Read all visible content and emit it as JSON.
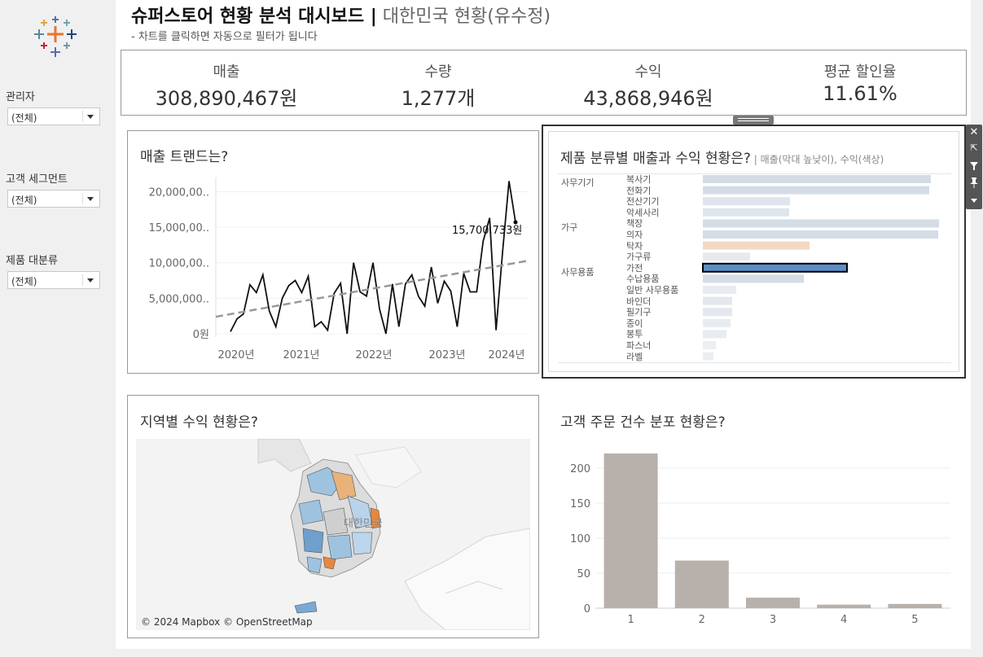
{
  "header": {
    "title_main": "슈퍼스토어 현황 분석 대시보드 |",
    "title_sub": " 대한민국 현황(유수정)",
    "subtitle": "- 차트를 클릭하면 자동으로 필터가 됩니다"
  },
  "sidebar": {
    "filters": [
      {
        "label": "관리자",
        "value": "(전체)"
      },
      {
        "label": "고객 세그먼트",
        "value": "(전체)"
      },
      {
        "label": "제품 대분류",
        "value": "(전체)"
      }
    ]
  },
  "kpis": [
    {
      "label": "매출",
      "value": "308,890,467원"
    },
    {
      "label": "수량",
      "value": "1,277개"
    },
    {
      "label": "수익",
      "value": "43,868,946원"
    },
    {
      "label": "평균 할인율",
      "value": "11.61%"
    }
  ],
  "trend": {
    "title": "매출 트랜드는?",
    "last_label": "15,700,733원"
  },
  "product": {
    "title": "제품 분류별 매출과 수익 현황은?",
    "note": " | 매출(막대 높낮이), 수익(색상)",
    "categories": [
      {
        "name": "사무기기",
        "items": [
          "복사기",
          "전화기",
          "전산기기",
          "악세사리"
        ]
      },
      {
        "name": "가구",
        "items": [
          "책장",
          "의자",
          "탁자",
          "가구류"
        ]
      },
      {
        "name": "사무용품",
        "items": [
          "가전",
          "수납용품",
          "일반 사무용품",
          "바인더",
          "필기구",
          "종이",
          "봉투",
          "파스너",
          "라벨"
        ]
      }
    ]
  },
  "map": {
    "title": "지역별 수익 현황은?",
    "attribution": "© 2024 Mapbox © OpenStreetMap",
    "country_label": "대한민국"
  },
  "orders": {
    "title": "고객 주문 건수 분포 현황은?"
  },
  "toolbar": {
    "close_icon": "close-icon",
    "open_icon": "open-external-icon",
    "filter_icon": "filter-icon",
    "pin_icon": "pin-icon",
    "more_icon": "chevron-down-icon"
  },
  "colors": {
    "bar_gray": "#b8b0ab",
    "trend_line": "#111111",
    "trend_dash": "#999999",
    "selected_bar": "#5b8fc7",
    "orange_bar": "#f3d9c4",
    "light_bar": "#d4dce6"
  },
  "chart_data": [
    {
      "type": "line",
      "title": "매출 트랜드는?",
      "x_ticks": [
        "2020년",
        "2021년",
        "2022년",
        "2023년",
        "2024년"
      ],
      "y_ticks": [
        "0원",
        "5,000,000..",
        "10,000,00..",
        "15,000,00..",
        "20,000,00.."
      ],
      "ylim": [
        0,
        22000000
      ],
      "series": [
        {
          "values": [
            300000,
            2100000,
            2800000,
            6900000,
            5800000,
            8300000,
            3200000,
            1000000,
            5000000,
            6800000,
            7500000,
            5800000,
            8100000,
            1000000,
            1700000,
            500000,
            5700000,
            7100000,
            0,
            10000000,
            5900000,
            5300000,
            10000000,
            3500000,
            0,
            7000000,
            1000000,
            7000000,
            8300000,
            5300000,
            3900000,
            9400000,
            4300000,
            7400000,
            6000000,
            1000000,
            8500000,
            5900000,
            5900000,
            13000000,
            16300000,
            500000,
            11500000,
            21500000,
            15700733
          ]
        }
      ],
      "trend_line": {
        "start": 2400000,
        "end": 10300000
      },
      "last_value_label": "15,700,733원"
    },
    {
      "type": "bar",
      "title": "제품 분류별 매출과 수익 현황은?",
      "categories": [
        "복사기",
        "전화기",
        "전산기기",
        "악세사리",
        "책장",
        "의자",
        "탁자",
        "가구류",
        "가전",
        "수납용품",
        "일반 사무용품",
        "바인더",
        "필기구",
        "종이",
        "봉투",
        "파스너",
        "라벨"
      ],
      "values": [
        280,
        278,
        107,
        106,
        290,
        289,
        131,
        58,
        177,
        124,
        41,
        36,
        36,
        34,
        29,
        16,
        13
      ],
      "colors": [
        "#d4dce6",
        "#d4dce6",
        "#dfe5ec",
        "#dfe5ec",
        "#d4dce6",
        "#d4dce6",
        "#f3d9c4",
        "#e6eaef",
        "#5b8fc7",
        "#d4dce6",
        "#e8ecf0",
        "#e3e8ee",
        "#e3e8ee",
        "#e8ecf0",
        "#e8ecf0",
        "#eceff2",
        "#eceff2"
      ],
      "selected": "가전"
    },
    {
      "type": "bar",
      "title": "고객 주문 건수 분포 현황은?",
      "categories": [
        "1",
        "2",
        "3",
        "4",
        "5"
      ],
      "values": [
        221,
        68,
        15,
        5,
        6
      ],
      "y_ticks": [
        "0",
        "50",
        "100",
        "150",
        "200"
      ],
      "ylim": [
        0,
        235
      ]
    }
  ]
}
